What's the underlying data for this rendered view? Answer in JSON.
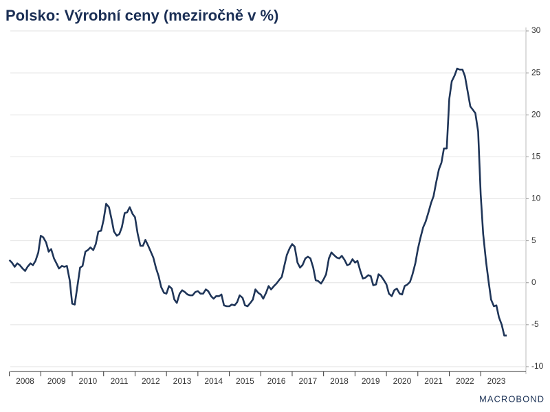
{
  "chart_data": {
    "type": "line",
    "title": "Polsko: Výrobní ceny (meziročně v %)",
    "brand": "MACROBOND",
    "xlim": [
      2008.03,
      2024.44
    ],
    "xticks": [
      2008,
      2009,
      2010,
      2011,
      2012,
      2013,
      2014,
      2015,
      2016,
      2017,
      2018,
      2019,
      2020,
      2021,
      2022,
      2023
    ],
    "ylim": [
      -11,
      31
    ],
    "yticks": [
      -10,
      -5,
      0,
      5,
      10,
      15,
      20,
      25,
      30
    ],
    "grid": true,
    "series": [
      {
        "name": "Polsko",
        "color": "#1f3558",
        "x": [
          2008,
          2008.08,
          2008.17,
          2008.25,
          2008.33,
          2008.42,
          2008.5,
          2008.58,
          2008.67,
          2008.75,
          2008.83,
          2008.92,
          2009,
          2009.08,
          2009.17,
          2009.25,
          2009.33,
          2009.42,
          2009.5,
          2009.58,
          2009.67,
          2009.75,
          2009.83,
          2009.92,
          2010,
          2010.08,
          2010.17,
          2010.25,
          2010.33,
          2010.42,
          2010.5,
          2010.58,
          2010.67,
          2010.75,
          2010.83,
          2010.92,
          2011,
          2011.08,
          2011.17,
          2011.25,
          2011.33,
          2011.42,
          2011.5,
          2011.58,
          2011.67,
          2011.75,
          2011.83,
          2011.92,
          2012,
          2012.08,
          2012.17,
          2012.25,
          2012.33,
          2012.42,
          2012.5,
          2012.58,
          2012.67,
          2012.75,
          2012.83,
          2012.92,
          2013,
          2013.08,
          2013.17,
          2013.25,
          2013.33,
          2013.42,
          2013.5,
          2013.58,
          2013.67,
          2013.75,
          2013.83,
          2013.92,
          2014,
          2014.08,
          2014.17,
          2014.25,
          2014.33,
          2014.42,
          2014.5,
          2014.58,
          2014.67,
          2014.75,
          2014.83,
          2014.92,
          2015,
          2015.08,
          2015.17,
          2015.25,
          2015.33,
          2015.42,
          2015.5,
          2015.58,
          2015.67,
          2015.75,
          2015.83,
          2015.92,
          2016,
          2016.08,
          2016.17,
          2016.25,
          2016.33,
          2016.42,
          2016.5,
          2016.58,
          2016.67,
          2016.75,
          2016.83,
          2016.92,
          2017,
          2017.08,
          2017.17,
          2017.25,
          2017.33,
          2017.42,
          2017.5,
          2017.58,
          2017.67,
          2017.75,
          2017.83,
          2017.92,
          2018,
          2018.08,
          2018.17,
          2018.25,
          2018.33,
          2018.42,
          2018.5,
          2018.58,
          2018.67,
          2018.75,
          2018.83,
          2018.92,
          2019,
          2019.08,
          2019.17,
          2019.25,
          2019.33,
          2019.42,
          2019.5,
          2019.58,
          2019.67,
          2019.75,
          2019.83,
          2019.92,
          2020,
          2020.08,
          2020.17,
          2020.25,
          2020.33,
          2020.42,
          2020.5,
          2020.58,
          2020.67,
          2020.75,
          2020.83,
          2020.92,
          2021,
          2021.08,
          2021.17,
          2021.25,
          2021.33,
          2021.42,
          2021.5,
          2021.58,
          2021.67,
          2021.75,
          2021.83,
          2021.92,
          2022,
          2022.08,
          2022.17,
          2022.25,
          2022.33,
          2022.42,
          2022.5,
          2022.58,
          2022.67,
          2022.75,
          2022.83,
          2022.92,
          2023,
          2023.08,
          2023.17,
          2023.25,
          2023.33,
          2023.42,
          2023.5,
          2023.58,
          2023.67,
          2023.75,
          2023.83
        ],
        "values": [
          2.7,
          2.4,
          1.9,
          2.3,
          2.1,
          1.7,
          1.4,
          1.9,
          2.3,
          2.1,
          2.6,
          3.6,
          5.6,
          5.4,
          4.8,
          3.7,
          4.0,
          2.9,
          2.3,
          1.7,
          2.0,
          1.9,
          2.0,
          0.3,
          -2.5,
          -2.6,
          -0.3,
          1.8,
          2.0,
          3.7,
          3.9,
          4.2,
          3.9,
          4.6,
          6.1,
          6.2,
          7.5,
          9.4,
          9.0,
          7.6,
          6.1,
          5.6,
          5.8,
          6.6,
          8.3,
          8.4,
          9.0,
          8.2,
          7.8,
          5.9,
          4.4,
          4.4,
          5.1,
          4.4,
          3.7,
          3.0,
          1.7,
          0.8,
          -0.5,
          -1.2,
          -1.3,
          -0.4,
          -0.7,
          -2.0,
          -2.4,
          -1.3,
          -0.9,
          -1.1,
          -1.4,
          -1.5,
          -1.5,
          -1.1,
          -1.0,
          -1.3,
          -1.3,
          -0.8,
          -1.0,
          -1.6,
          -1.9,
          -1.6,
          -1.6,
          -1.4,
          -2.7,
          -2.8,
          -2.8,
          -2.6,
          -2.7,
          -2.3,
          -1.5,
          -1.8,
          -2.7,
          -2.8,
          -2.4,
          -2.0,
          -0.8,
          -1.2,
          -1.4,
          -1.9,
          -1.2,
          -0.4,
          -0.8,
          -0.4,
          -0.1,
          0.3,
          0.7,
          2.0,
          3.3,
          4.1,
          4.6,
          4.3,
          2.4,
          1.8,
          2.1,
          2.9,
          3.1,
          2.9,
          1.8,
          0.3,
          0.2,
          -0.1,
          0.4,
          1.0,
          2.9,
          3.6,
          3.3,
          3.0,
          2.9,
          3.2,
          2.7,
          2.1,
          2.2,
          2.8,
          2.4,
          2.6,
          1.4,
          0.5,
          0.6,
          0.9,
          0.8,
          -0.3,
          -0.2,
          1.0,
          0.8,
          0.3,
          -0.2,
          -1.3,
          -1.6,
          -0.9,
          -0.7,
          -1.3,
          -1.4,
          -0.4,
          -0.2,
          0.1,
          1.0,
          2.3,
          4.0,
          5.3,
          6.6,
          7.3,
          8.3,
          9.5,
          10.3,
          11.9,
          13.5,
          14.3,
          16.0,
          16.0,
          21.9,
          24.0,
          24.7,
          25.5,
          25.4,
          25.4,
          24.6,
          22.9,
          21.0,
          20.6,
          20.2,
          18.0,
          10.5,
          5.8,
          2.5,
          0.2,
          -2.0,
          -2.8,
          -2.7,
          -4.1,
          -5.0,
          -6.3,
          -6.3
        ]
      }
    ]
  }
}
